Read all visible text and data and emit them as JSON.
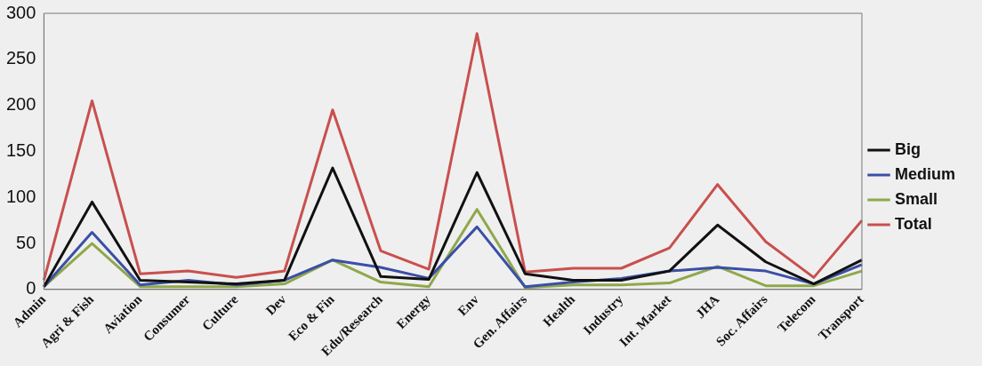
{
  "chart_data": {
    "type": "line",
    "categories": [
      "Admin",
      "Agri & Fish",
      "Aviation",
      "Consumer",
      "Culture",
      "Dev",
      "Eco & Fin",
      "Edu/Research",
      "Energy",
      "Env",
      "Gen. Affairs",
      "Health",
      "Industry",
      "Int. Market",
      "JHA",
      "Soc. Affairs",
      "Telecom",
      "Transport"
    ],
    "series": [
      {
        "name": "Big",
        "color": "#111111",
        "values": [
          3,
          95,
          10,
          8,
          6,
          10,
          132,
          14,
          11,
          127,
          17,
          10,
          10,
          20,
          70,
          30,
          6,
          32
        ]
      },
      {
        "name": "Medium",
        "color": "#3a4fa8",
        "values": [
          3,
          62,
          5,
          10,
          5,
          10,
          32,
          24,
          12,
          68,
          3,
          8,
          12,
          20,
          24,
          20,
          6,
          27
        ]
      },
      {
        "name": "Small",
        "color": "#8fa84a",
        "values": [
          3,
          50,
          3,
          3,
          3,
          6,
          32,
          8,
          3,
          87,
          2,
          5,
          5,
          7,
          25,
          4,
          4,
          20
        ]
      },
      {
        "name": "Total",
        "color": "#c8504e",
        "values": [
          10,
          205,
          17,
          20,
          13,
          20,
          195,
          42,
          22,
          278,
          19,
          23,
          23,
          45,
          114,
          52,
          13,
          75
        ]
      }
    ],
    "ylim": [
      0,
      300
    ],
    "yticks": [
      0,
      50,
      100,
      150,
      200,
      250,
      300
    ],
    "grid": false,
    "legend": "right",
    "marker": "none",
    "line_style": "solid"
  }
}
